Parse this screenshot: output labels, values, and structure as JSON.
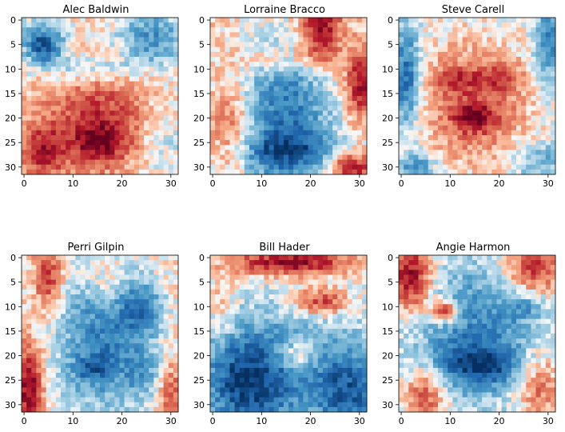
{
  "chart_data": [
    {
      "type": "heatmap",
      "title": "Alec Baldwin",
      "xticks": [
        0,
        10,
        20,
        30
      ],
      "yticks": [
        0,
        5,
        10,
        15,
        20,
        25,
        30
      ],
      "grid": "32x32",
      "colormap": "RdBu (red = high, blue = low)"
    },
    {
      "type": "heatmap",
      "title": "Lorraine Bracco",
      "xticks": [
        0,
        10,
        20,
        30
      ],
      "yticks": [
        0,
        5,
        10,
        15,
        20,
        25,
        30
      ],
      "grid": "32x32",
      "colormap": "RdBu (red = high, blue = low)"
    },
    {
      "type": "heatmap",
      "title": "Steve Carell",
      "xticks": [
        0,
        10,
        20,
        30
      ],
      "yticks": [
        0,
        5,
        10,
        15,
        20,
        25,
        30
      ],
      "grid": "32x32",
      "colormap": "RdBu (red = high, blue = low)"
    },
    {
      "type": "heatmap",
      "title": "Perri Gilpin",
      "xticks": [
        0,
        10,
        20,
        30
      ],
      "yticks": [
        0,
        5,
        10,
        15,
        20,
        25,
        30
      ],
      "grid": "32x32",
      "colormap": "RdBu (red = high, blue = low)"
    },
    {
      "type": "heatmap",
      "title": "Bill Hader",
      "xticks": [
        0,
        10,
        20,
        30
      ],
      "yticks": [
        0,
        5,
        10,
        15,
        20,
        25,
        30
      ],
      "grid": "32x32",
      "colormap": "RdBu (red = high, blue = low)"
    },
    {
      "type": "heatmap",
      "title": "Angie Harmon",
      "xticks": [
        0,
        10,
        20,
        30
      ],
      "yticks": [
        0,
        5,
        10,
        15,
        20,
        25,
        30
      ],
      "grid": "32x32",
      "colormap": "RdBu (red = high, blue = low)"
    }
  ]
}
